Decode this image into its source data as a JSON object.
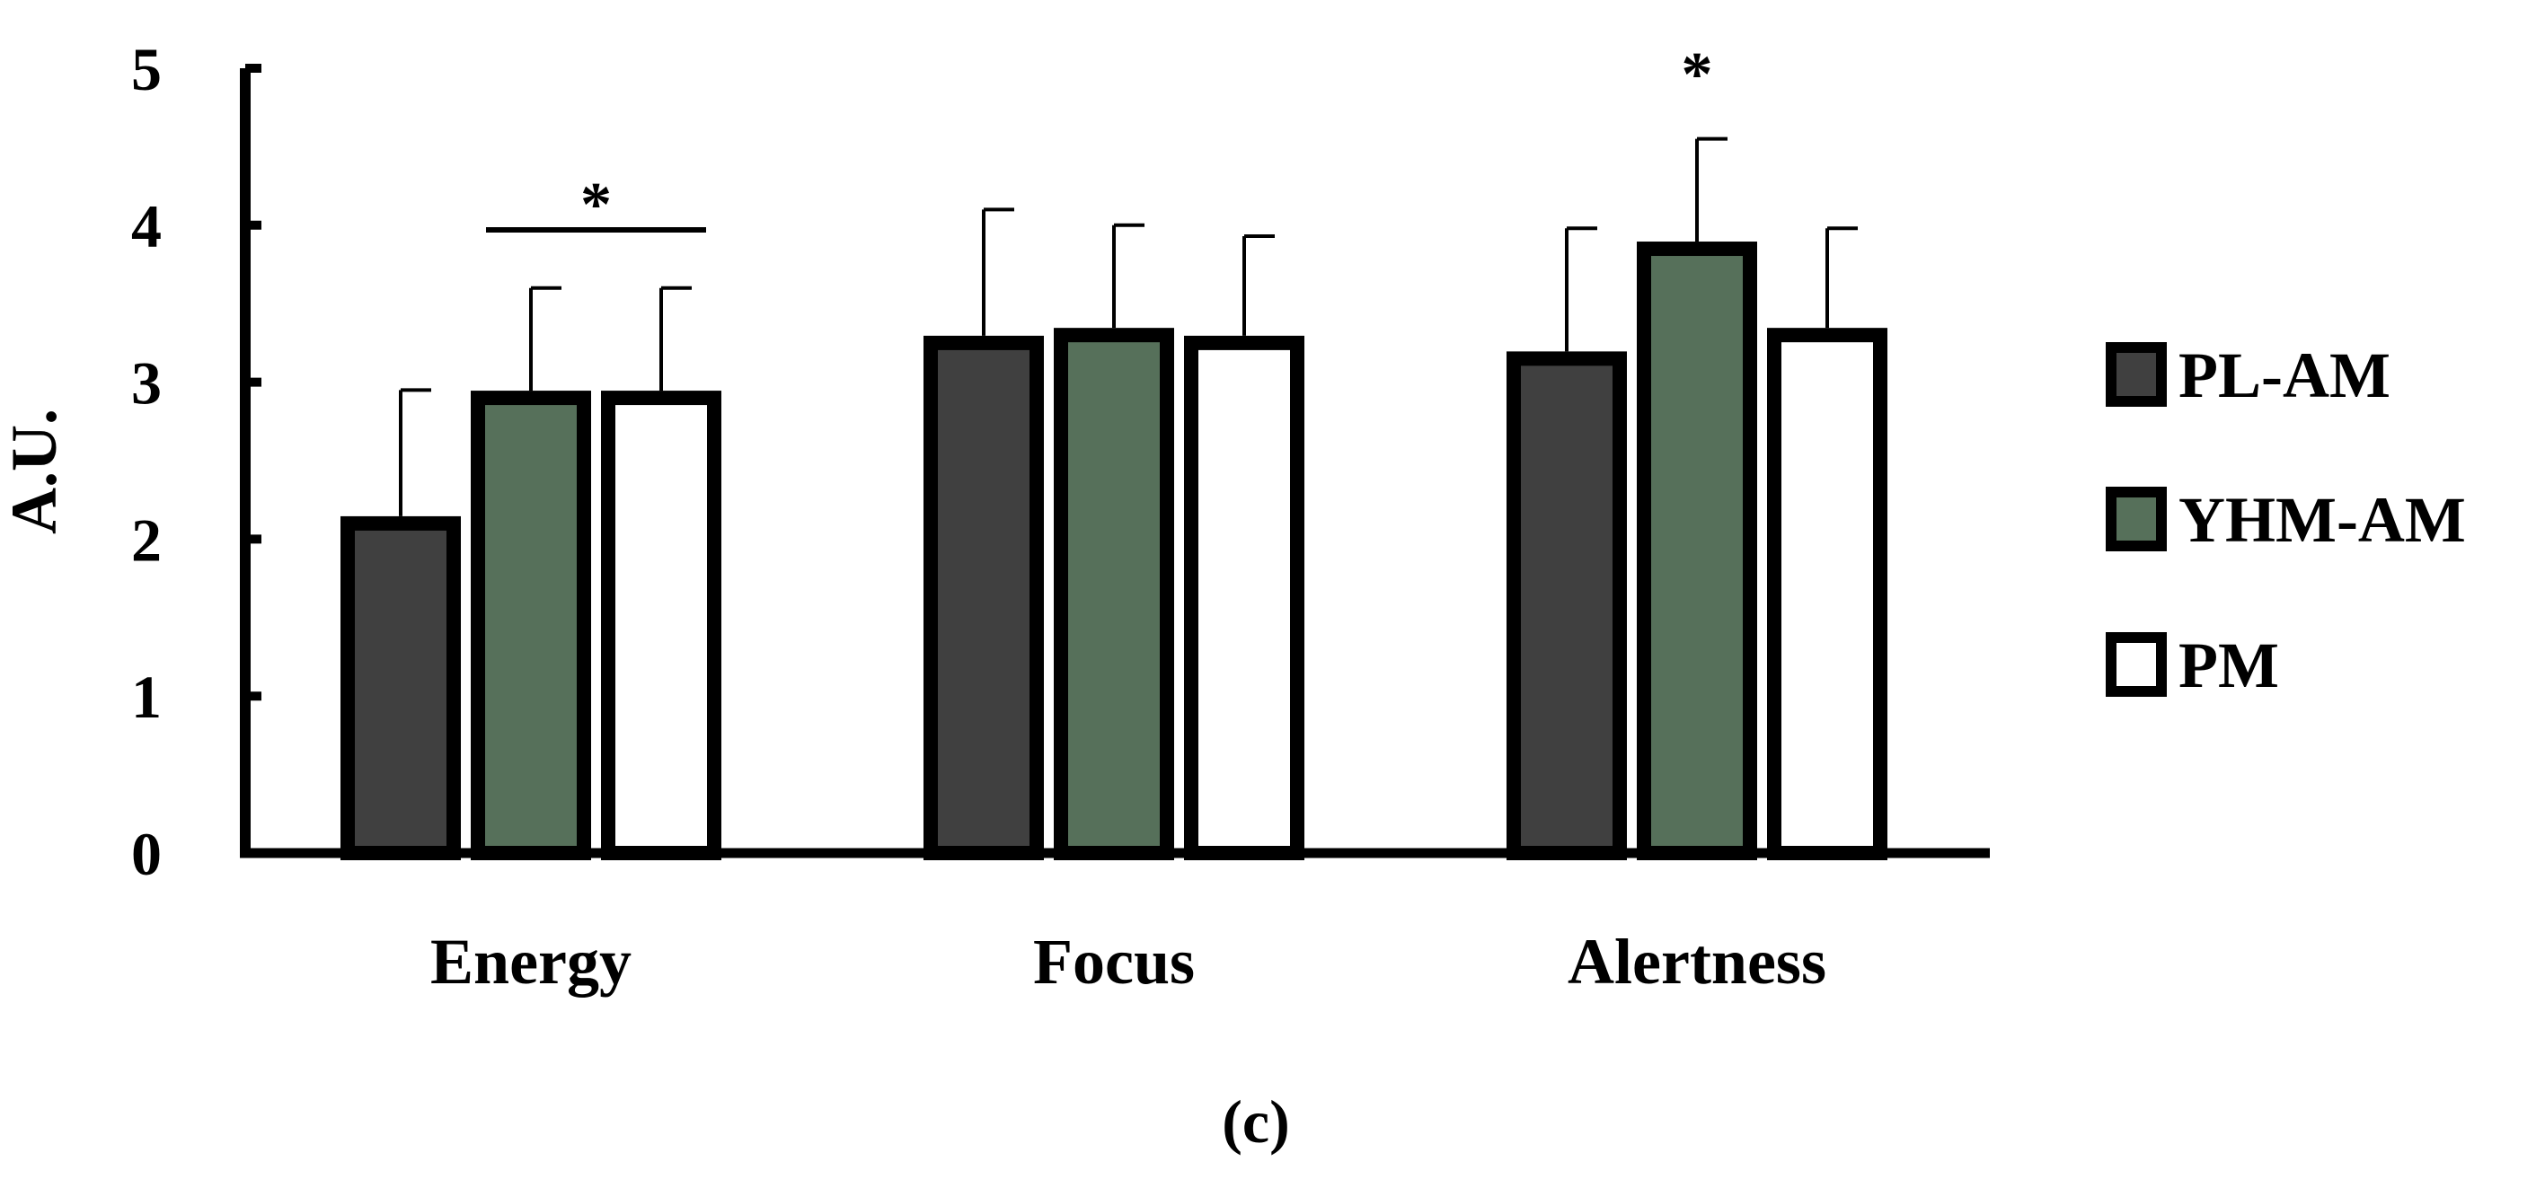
{
  "chart_data": {
    "type": "bar",
    "title": "",
    "xlabel": "",
    "ylabel": "A.U.",
    "ylim": [
      0,
      5
    ],
    "yticks": [
      "0",
      "1",
      "2",
      "3",
      "4",
      "5"
    ],
    "categories": [
      "Energy",
      "Focus",
      "Alertness"
    ],
    "series": [
      {
        "name": "PL-AM",
        "color": "#404040",
        "values": [
          2.1,
          3.25,
          3.15
        ],
        "errors": [
          0.85,
          0.85,
          0.83
        ]
      },
      {
        "name": "YHM-AM",
        "color": "#56705a",
        "values": [
          2.9,
          3.3,
          3.85
        ],
        "errors": [
          0.7,
          0.7,
          0.7
        ]
      },
      {
        "name": "PM",
        "color": "#ffffff",
        "values": [
          2.9,
          3.25,
          3.3
        ],
        "errors": [
          0.7,
          0.68,
          0.68
        ]
      }
    ],
    "significance": [
      {
        "category": "Energy",
        "from_series": "YHM-AM",
        "to_series": "PM",
        "y": 3.97,
        "label": "*"
      },
      {
        "category": "Alertness",
        "series": "YHM-AM",
        "y": 4.8,
        "label": "*"
      }
    ],
    "panel_label": "(c)",
    "legend_position": "right"
  }
}
